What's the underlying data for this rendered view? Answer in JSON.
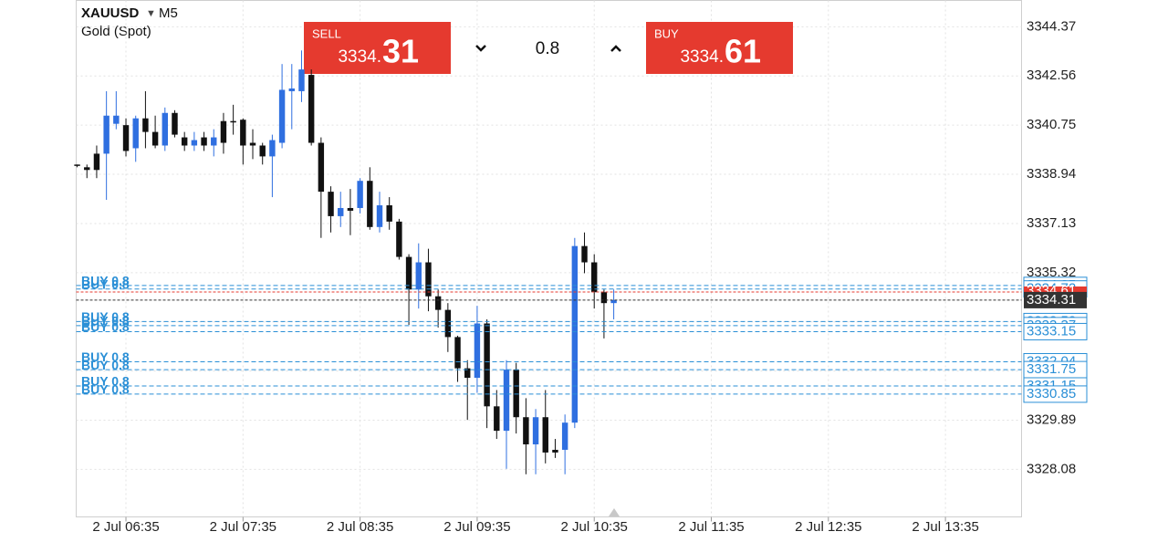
{
  "header": {
    "symbol": "XAUUSD",
    "timeframe": "M5",
    "name": "Gold (Spot)"
  },
  "trade_panel": {
    "sell_label": "SELL",
    "sell_price_small": "3334.",
    "sell_price_big": "31",
    "spread": "0.8",
    "buy_label": "BUY",
    "buy_price_small": "3334.",
    "buy_price_big": "61"
  },
  "chart_data": {
    "type": "candlestick",
    "up_color": "#2f6fe0",
    "down_color": "#111111",
    "open": [
      3339.3,
      3339.2,
      3339.7,
      3339.7,
      3340.8,
      3340.75,
      3339.9,
      3341.0,
      3340.5,
      3340.0,
      3341.2,
      3340.3,
      3340.0,
      3340.3,
      3340.0,
      3340.9,
      3340.9,
      3340.95,
      3340.1,
      3340.0,
      3339.6,
      3340.1,
      3342.0,
      3342.0,
      3342.6,
      3340.1,
      3338.3,
      3337.4,
      3337.7,
      3337.7,
      3338.7,
      3337.0,
      3337.8,
      3337.2,
      3335.9,
      3334.7,
      3335.7,
      3334.45,
      3333.95,
      3332.95,
      3331.8,
      3331.45,
      3333.45,
      3330.4,
      3329.5,
      3331.75,
      3330.0,
      3329.0,
      3330.0,
      3328.8,
      3328.8,
      3329.8,
      3336.3,
      3335.7,
      3334.6,
      3334.2
    ],
    "high": [
      3339.3,
      3339.3,
      3340.0,
      3342.0,
      3342.0,
      3341.0,
      3341.1,
      3342.0,
      3341.1,
      3341.4,
      3341.3,
      3340.5,
      3340.5,
      3340.5,
      3340.6,
      3341.2,
      3341.5,
      3341.0,
      3340.6,
      3340.1,
      3340.4,
      3343.0,
      3343.0,
      3343.5,
      3342.8,
      3340.3,
      3338.5,
      3338.3,
      3338.4,
      3338.8,
      3339.2,
      3338.3,
      3338.1,
      3337.3,
      3336.0,
      3336.4,
      3336.2,
      3334.7,
      3334.2,
      3333.0,
      3332.1,
      3334.1,
      3333.6,
      3331.0,
      3332.1,
      3332.0,
      3330.7,
      3330.3,
      3331.0,
      3329.2,
      3330.1,
      3336.6,
      3336.8,
      3336.0,
      3334.7,
      3334.7
    ],
    "low": [
      3339.2,
      3338.8,
      3338.8,
      3338.0,
      3340.6,
      3339.6,
      3339.4,
      3339.9,
      3339.9,
      3339.8,
      3340.3,
      3339.8,
      3339.8,
      3339.8,
      3339.6,
      3339.7,
      3340.4,
      3339.3,
      3339.5,
      3339.3,
      3338.1,
      3339.9,
      3340.6,
      3341.6,
      3340.0,
      3336.6,
      3336.8,
      3337.0,
      3336.7,
      3337.5,
      3336.9,
      3336.8,
      3336.9,
      3335.8,
      3333.4,
      3334.0,
      3333.9,
      3333.3,
      3332.4,
      3331.3,
      3329.9,
      3330.9,
      3329.6,
      3329.2,
      3328.1,
      3329.4,
      3327.9,
      3327.9,
      3328.3,
      3328.5,
      3327.9,
      3329.6,
      3335.3,
      3334.0,
      3332.9,
      3333.6
    ],
    "close": [
      3339.25,
      3339.1,
      3339.1,
      3341.1,
      3341.1,
      3339.8,
      3341.0,
      3340.5,
      3340.0,
      3341.2,
      3340.4,
      3340.0,
      3340.2,
      3340.0,
      3340.3,
      3340.1,
      3340.85,
      3340.0,
      3340.0,
      3339.6,
      3340.2,
      3342.05,
      3342.1,
      3342.8,
      3340.1,
      3338.3,
      3337.4,
      3337.7,
      3337.6,
      3338.7,
      3337.0,
      3337.8,
      3337.2,
      3335.9,
      3334.7,
      3335.7,
      3334.45,
      3333.95,
      3332.95,
      3331.8,
      3331.45,
      3333.45,
      3330.4,
      3329.5,
      3331.75,
      3330.0,
      3329.0,
      3330.0,
      3328.7,
      3328.7,
      3329.8,
      3336.3,
      3335.7,
      3334.6,
      3334.2,
      3334.31
    ],
    "xlim": [
      -0.1,
      96.8
    ],
    "xticks": [
      {
        "value": 5,
        "label": "2 Jul 06:35"
      },
      {
        "value": 17,
        "label": "2 Jul 07:35"
      },
      {
        "value": 29,
        "label": "2 Jul 08:35"
      },
      {
        "value": 41,
        "label": "2 Jul 09:35"
      },
      {
        "value": 53,
        "label": "2 Jul 10:35"
      },
      {
        "value": 65,
        "label": "2 Jul 11:35"
      },
      {
        "value": 77,
        "label": "2 Jul 12:35"
      },
      {
        "value": 89,
        "label": "2 Jul 13:35"
      }
    ],
    "ylim": [
      3326.33,
      3345.34
    ],
    "yticks": [
      3344.37,
      3342.56,
      3340.75,
      3338.94,
      3337.13,
      3335.32,
      3333.51,
      3331.7,
      3329.89,
      3328.08
    ],
    "grid": true,
    "orders": [
      {
        "label": "BUY 0.8",
        "price": 3334.85
      },
      {
        "label": "BUY 0.8",
        "price": 3334.72
      },
      {
        "label": "BUY 0.8",
        "price": 3333.52
      },
      {
        "label": "BUY 0.8",
        "price": 3333.37
      },
      {
        "label": "BUY 0.8",
        "price": 3333.15
      },
      {
        "label": "BUY 0.8",
        "price": 3332.04
      },
      {
        "label": "BUY 0.8",
        "price": 3331.75
      },
      {
        "label": "BUY 0.8",
        "price": 3331.15
      },
      {
        "label": "BUY 0.8",
        "price": 3330.85
      }
    ],
    "order_color": "#2a8fd6",
    "ask_price": 3334.61,
    "ask_color": "#e53a2f",
    "last_price": 3334.31
  }
}
